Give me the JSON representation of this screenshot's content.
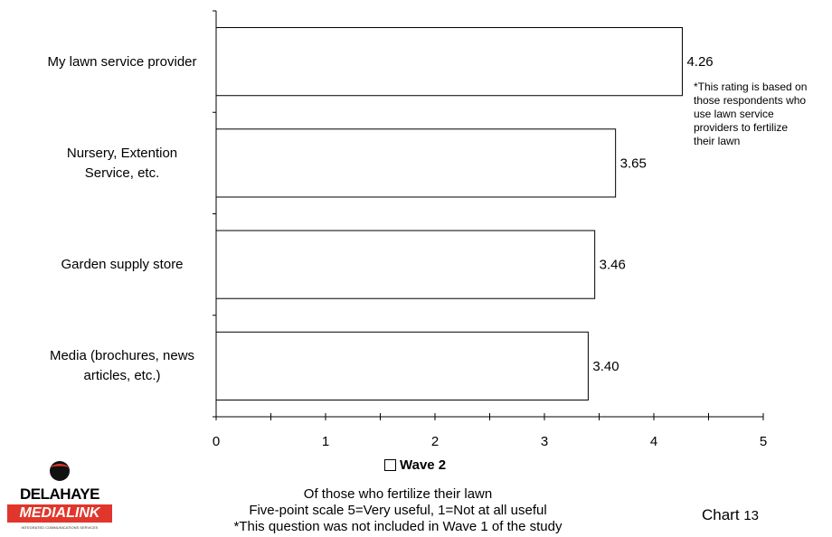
{
  "chart_data": {
    "type": "bar",
    "orientation": "horizontal",
    "categories": [
      [
        "My lawn service provider"
      ],
      [
        "Nursery, Extention",
        "Service, etc."
      ],
      [
        "Garden supply store"
      ],
      [
        "Media (brochures, news",
        "articles, etc.)"
      ]
    ],
    "series": [
      {
        "name": "Wave 2",
        "values": [
          4.26,
          3.65,
          3.46,
          3.4
        ],
        "labels": [
          "4.26",
          "3.65",
          "3.46",
          "3.40"
        ]
      }
    ],
    "xlim": [
      0,
      5
    ],
    "xticks": [
      0,
      1,
      2,
      3,
      4,
      5
    ],
    "grid": false,
    "legend_position": "bottom",
    "bar_fill": "#ffffff",
    "bar_stroke": "#000000"
  },
  "annotation": [
    "*This rating is based on",
    "those respondents who",
    "use lawn service",
    "providers to fertilize",
    "their lawn"
  ],
  "legend_label": "Wave 2",
  "footnotes": [
    "Of those who fertilize their lawn",
    "Five-point scale 5=Very useful, 1=Not at all useful",
    "*This question was not included in Wave 1 of the study"
  ],
  "chart_number": {
    "word": "Chart",
    "number": "13"
  },
  "logo": {
    "top": "DELAHAYE",
    "bottom": "MEDIALINK",
    "tagline": "INTEGRATED COMMUNICATIONS SERVICES",
    "accent": "#e0362b"
  }
}
